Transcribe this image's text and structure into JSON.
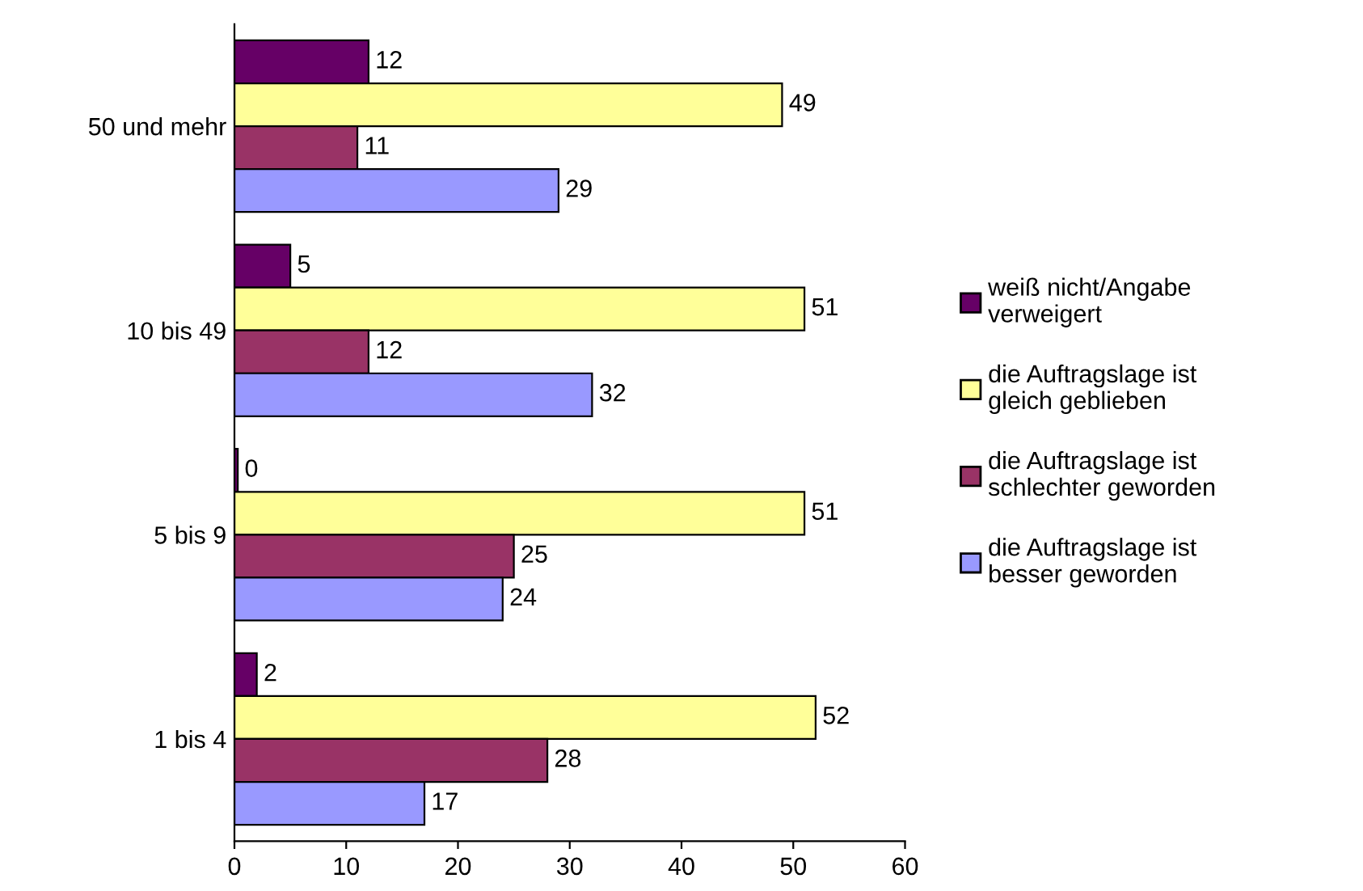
{
  "chart_data": {
    "type": "bar",
    "orientation": "horizontal",
    "categories": [
      "50 und mehr",
      "10 bis 49",
      "5 bis 9",
      "1 bis 4"
    ],
    "series": [
      {
        "name": "weiß nicht/Angabe\nverweigert",
        "color": "#660066",
        "values": [
          12,
          5,
          0.3,
          2
        ],
        "value_labels": [
          "12",
          "5",
          "0",
          "2"
        ]
      },
      {
        "name": "die Auftragslage ist\ngleich geblieben",
        "color": "#ffff99",
        "values": [
          49,
          51,
          51,
          52
        ]
      },
      {
        "name": "die Auftragslage ist\nschlechter geworden",
        "color": "#993366",
        "values": [
          11,
          12,
          25,
          28
        ]
      },
      {
        "name": "die Auftragslage ist\nbesser geworden",
        "color": "#9999ff",
        "values": [
          29,
          32,
          24,
          17
        ]
      }
    ],
    "xlim": [
      0,
      60
    ],
    "xticks": [
      0,
      10,
      20,
      30,
      40,
      50,
      60
    ],
    "data_labels": true,
    "grid": false,
    "legend": "right"
  }
}
